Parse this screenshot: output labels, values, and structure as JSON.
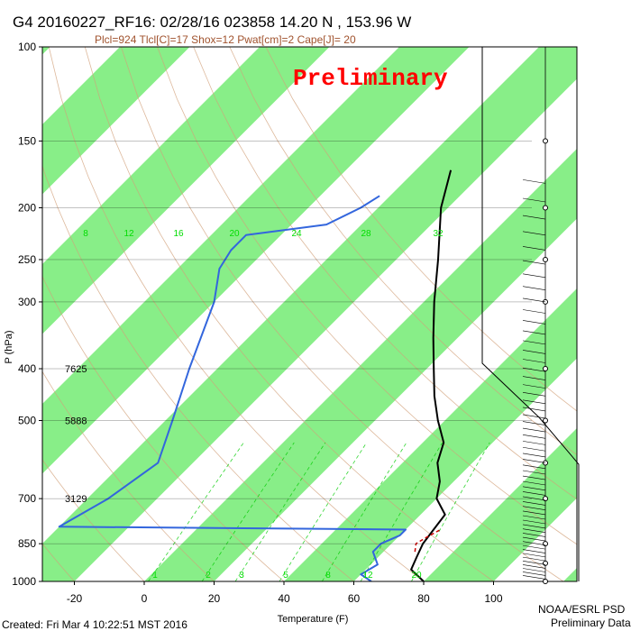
{
  "header": {
    "title": "G4 20160227_RF16: 02/28/16 023858  14.20 N , 153.96 W",
    "subtitle": "Plcl=924 Tlcl[C]=17 Shox=12 Pwat[cm]=2 Cape[J]= 20"
  },
  "watermark": "Preliminary",
  "footer": {
    "created": "Created: Fri Mar  4 10:22:51 MST 2016",
    "credit_line1": "NOAA/ESRL PSD",
    "credit_line2": "Preliminary Data"
  },
  "colors": {
    "isotherm_band": "#88ee88",
    "adiabat": "#d2a07a",
    "mixing_ratio": "#00cc00",
    "temperature": "#000000",
    "dewpoint": "#3366dd",
    "parcel": "#cc0000"
  },
  "chart_data": {
    "type": "line",
    "skew_t": true,
    "xlabel": "Temperature (F)",
    "ylabel": "P (hPa)",
    "x_ticks": [
      -20,
      0,
      20,
      40,
      60,
      80,
      100
    ],
    "y_ticks": [
      100,
      150,
      200,
      250,
      300,
      400,
      500,
      700,
      850,
      1000
    ],
    "y_scale": "log",
    "ylim": [
      1000,
      100
    ],
    "height_labels": [
      {
        "pressure": 400,
        "text": "7625"
      },
      {
        "pressure": 500,
        "text": "5888"
      },
      {
        "pressure": 700,
        "text": "3129"
      }
    ],
    "mixing_ratio_labels_top": [
      "8",
      "12",
      "16",
      "20",
      "24",
      "28",
      "32"
    ],
    "mixing_ratio_labels_bottom": [
      "1",
      "2",
      "3",
      "5",
      "8",
      "12",
      "20"
    ],
    "series": [
      {
        "kind": "temperature",
        "points": [
          [
            1000,
            80
          ],
          [
            950,
            73
          ],
          [
            900,
            71
          ],
          [
            850,
            69
          ],
          [
            800,
            68
          ],
          [
            750,
            67
          ],
          [
            700,
            60
          ],
          [
            650,
            56
          ],
          [
            600,
            50
          ],
          [
            550,
            46
          ],
          [
            500,
            38
          ],
          [
            450,
            30
          ],
          [
            400,
            22
          ],
          [
            350,
            13
          ],
          [
            300,
            3
          ],
          [
            250,
            -8
          ],
          [
            200,
            -22
          ],
          [
            170,
            -30
          ]
        ]
      },
      {
        "kind": "dewpoint",
        "points": [
          [
            1000,
            65
          ],
          [
            970,
            60
          ],
          [
            930,
            62
          ],
          [
            880,
            57
          ],
          [
            850,
            57
          ],
          [
            820,
            60
          ],
          [
            800,
            60
          ],
          [
            790,
            -40
          ],
          [
            700,
            -34
          ],
          [
            600,
            -30
          ],
          [
            500,
            -38
          ],
          [
            400,
            -48
          ],
          [
            300,
            -60
          ],
          [
            260,
            -68
          ],
          [
            240,
            -70
          ],
          [
            225,
            -70
          ],
          [
            215,
            -50
          ],
          [
            200,
            -45
          ],
          [
            190,
            -43
          ]
        ]
      },
      {
        "kind": "parcel",
        "points": [
          [
            880,
            69
          ],
          [
            850,
            67
          ],
          [
            830,
            68
          ],
          [
            800,
            70
          ]
        ]
      }
    ]
  }
}
